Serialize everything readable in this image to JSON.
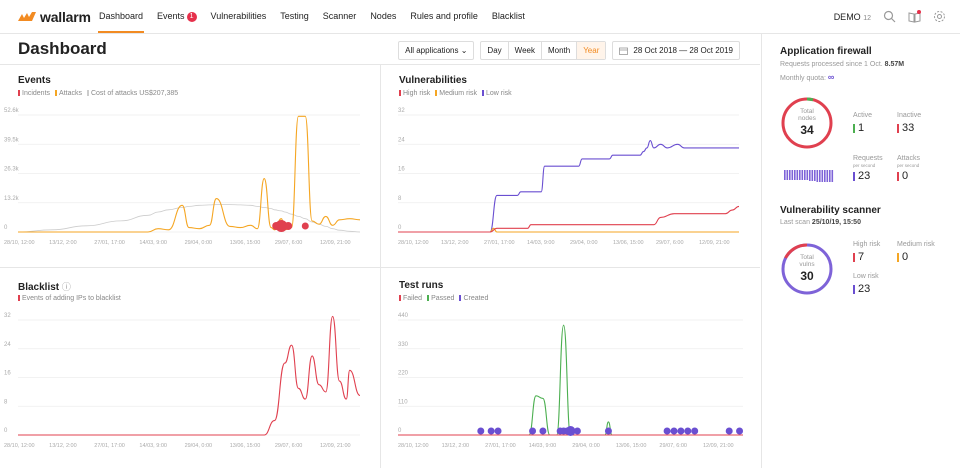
{
  "brand": {
    "name": "wallarm",
    "color": "#f28b22"
  },
  "nav": {
    "items": [
      {
        "label": "Dashboard",
        "active": true
      },
      {
        "label": "Events",
        "badge": "1"
      },
      {
        "label": "Vulnerabilities"
      },
      {
        "label": "Testing"
      },
      {
        "label": "Scanner"
      },
      {
        "label": "Nodes"
      },
      {
        "label": "Rules and profile"
      },
      {
        "label": "Blacklist"
      }
    ],
    "account": "DEMO",
    "account_num": "12",
    "icons": [
      "search-icon",
      "book-icon",
      "gear-icon"
    ]
  },
  "page": {
    "title": "Dashboard",
    "app_select": "All applications",
    "periods": [
      "Day",
      "Week",
      "Month",
      "Year"
    ],
    "active_period": "Year",
    "date_range": "28 Oct 2018 — 28 Oct 2019"
  },
  "colors": {
    "red": "#e0404f",
    "orange": "#f5a623",
    "blue": "#6a4fd1",
    "green": "#4caf50",
    "grey": "#bbbbbb"
  },
  "x_ticks": [
    "28/10, 12:00",
    "13/12, 2:00",
    "27/01, 17:00",
    "14/03, 9:00",
    "29/04, 0:00",
    "13/06, 15:00",
    "29/07, 6:00",
    "12/09, 21:00"
  ],
  "panels": {
    "events": {
      "title": "Events",
      "legend": [
        {
          "label": "Incidents",
          "color": "#e0404f"
        },
        {
          "label": "Attacks",
          "color": "#f5a623"
        },
        {
          "label": "Cost of attacks US$207,385",
          "color": "#bbbbbb"
        }
      ]
    },
    "vulnerabilities": {
      "title": "Vulnerabilities",
      "legend": [
        {
          "label": "High risk",
          "color": "#e0404f"
        },
        {
          "label": "Medium risk",
          "color": "#f5a623"
        },
        {
          "label": "Low risk",
          "color": "#6a4fd1"
        }
      ]
    },
    "blacklist": {
      "title": "Blacklist",
      "legend": [
        {
          "label": "Events of adding IPs to blacklist",
          "color": "#e0404f"
        }
      ]
    },
    "testruns": {
      "title": "Test runs",
      "legend": [
        {
          "label": "Failed",
          "color": "#e0404f"
        },
        {
          "label": "Passed",
          "color": "#4caf50"
        },
        {
          "label": "Created",
          "color": "#6a4fd1"
        }
      ]
    }
  },
  "chart_data": [
    {
      "type": "line",
      "title": "Events",
      "ylim": [
        0,
        52600
      ],
      "yticks": [
        "0",
        "13.2k",
        "26.3k",
        "39.5k",
        "52.6k"
      ],
      "x": [
        0,
        0.1,
        0.2,
        0.3,
        0.38,
        0.41,
        0.44,
        0.48,
        0.5,
        0.53,
        0.56,
        0.58,
        0.62,
        0.65,
        0.68,
        0.7,
        0.72,
        0.74,
        0.75,
        0.77,
        0.78,
        0.8,
        0.82,
        0.84,
        0.86,
        0.88,
        0.9,
        0.92,
        0.94,
        0.97,
        1
      ],
      "series": [
        {
          "name": "Attacks",
          "values": [
            0,
            0,
            0,
            0,
            0,
            1500,
            1000,
            12000,
            2000,
            1500,
            3000,
            15000,
            2500,
            2000,
            3000,
            1500,
            24000,
            2000,
            1000,
            6000,
            1000,
            2000,
            52000,
            52000,
            5000,
            3500,
            7000,
            3000,
            5500,
            6000,
            5500
          ]
        },
        {
          "name": "Cost of attacks US$207,385",
          "style": "curve",
          "values": [
            0,
            1000,
            2800,
            5000,
            7500,
            9000,
            10000,
            11000,
            11500,
            12000,
            12200,
            12300,
            12300,
            12200,
            12000,
            11500,
            11000,
            10500,
            10000,
            9500,
            9000,
            8000,
            7000,
            6000,
            4500,
            3500,
            2500,
            1500,
            800,
            300,
            0
          ]
        }
      ],
      "incidents": [
        {
          "x": 0.755,
          "size": 4
        },
        {
          "x": 0.77,
          "size": 6
        },
        {
          "x": 0.79,
          "size": 4
        },
        {
          "x": 0.84,
          "size": 3.5
        }
      ]
    },
    {
      "type": "line",
      "title": "Vulnerabilities",
      "ylim": [
        0,
        32
      ],
      "yticks": [
        "0",
        "8",
        "16",
        "24",
        "32"
      ],
      "series": [
        {
          "name": "Low risk",
          "points": [
            [
              0,
              0
            ],
            [
              0.27,
              0
            ],
            [
              0.29,
              10
            ],
            [
              0.35,
              10
            ],
            [
              0.36,
              11
            ],
            [
              0.42,
              11
            ],
            [
              0.43,
              18
            ],
            [
              0.53,
              18
            ],
            [
              0.54,
              20
            ],
            [
              0.62,
              20
            ],
            [
              0.63,
              21
            ],
            [
              0.71,
              21
            ],
            [
              0.72,
              22
            ],
            [
              0.73,
              23
            ],
            [
              0.74,
              25
            ],
            [
              0.75,
              23
            ],
            [
              0.77,
              24
            ],
            [
              0.79,
              23
            ],
            [
              0.82,
              24
            ],
            [
              0.84,
              23
            ],
            [
              1,
              23
            ]
          ]
        },
        {
          "name": "Medium risk",
          "points": [
            [
              0,
              0
            ],
            [
              0.27,
              0
            ],
            [
              0.28,
              1
            ],
            [
              0.29,
              0
            ],
            [
              0.3,
              0
            ],
            [
              1,
              0
            ]
          ]
        },
        {
          "name": "High risk",
          "points": [
            [
              0,
              0
            ],
            [
              0.27,
              0
            ],
            [
              0.29,
              1
            ],
            [
              0.38,
              1
            ],
            [
              0.39,
              2
            ],
            [
              0.75,
              2
            ],
            [
              0.77,
              4
            ],
            [
              0.81,
              5
            ],
            [
              0.96,
              5
            ],
            [
              0.98,
              6
            ],
            [
              1,
              7
            ]
          ]
        }
      ]
    },
    {
      "type": "line",
      "title": "Blacklist",
      "ylim": [
        0,
        32
      ],
      "yticks": [
        "0",
        "8",
        "16",
        "24",
        "32"
      ],
      "series": [
        {
          "name": "Events of adding IPs to blacklist",
          "points": [
            [
              0,
              0
            ],
            [
              0.72,
              0
            ],
            [
              0.75,
              4
            ],
            [
              0.78,
              20
            ],
            [
              0.8,
              25
            ],
            [
              0.82,
              13
            ],
            [
              0.84,
              10
            ],
            [
              0.86,
              22
            ],
            [
              0.88,
              14
            ],
            [
              0.9,
              12
            ],
            [
              0.92,
              33
            ],
            [
              0.94,
              15
            ],
            [
              0.96,
              10
            ],
            [
              0.97,
              18
            ],
            [
              1,
              11
            ]
          ]
        }
      ]
    },
    {
      "type": "line",
      "title": "Test runs",
      "ylim": [
        0,
        440
      ],
      "yticks": [
        "0",
        "110",
        "220",
        "330",
        "440"
      ],
      "series": [
        {
          "name": "Passed",
          "points": [
            [
              0,
              0
            ],
            [
              0.38,
              0
            ],
            [
              0.4,
              150
            ],
            [
              0.42,
              140
            ],
            [
              0.44,
              0
            ],
            [
              0.46,
              0
            ],
            [
              0.48,
              420
            ],
            [
              0.5,
              0
            ],
            [
              0.53,
              0
            ],
            [
              0.6,
              0
            ],
            [
              0.61,
              50
            ],
            [
              0.62,
              0
            ],
            [
              1,
              0
            ]
          ]
        },
        {
          "name": "Failed",
          "points": [
            [
              0,
              0
            ],
            [
              1,
              0
            ]
          ]
        }
      ],
      "created": [
        0.24,
        0.27,
        0.29,
        0.39,
        0.42,
        0.47,
        0.48,
        0.49,
        0.5,
        0.52,
        0.61,
        0.78,
        0.8,
        0.82,
        0.84,
        0.86,
        0.96,
        0.99
      ]
    }
  ],
  "sidebar": {
    "firewall": {
      "title": "Application firewall",
      "requests_label": "Requests processed since 1 Oct.",
      "requests_value": "8.57M",
      "quota_label": "Monthly quota:",
      "quota_value": "∞",
      "ring_label_1": "Total",
      "ring_label_2": "nodes",
      "total_nodes": "34",
      "active": {
        "label": "Active",
        "value": "1",
        "color": "#4caf50"
      },
      "inactive": {
        "label": "Inactive",
        "value": "33",
        "color": "#e0404f"
      },
      "requests": {
        "label": "Requests",
        "sub": "per second",
        "value": "23",
        "color": "#6a4fd1"
      },
      "attacks": {
        "label": "Attacks",
        "sub": "per second",
        "value": "0",
        "color": "#e0404f"
      }
    },
    "scanner": {
      "title": "Vulnerability scanner",
      "last_scan_label": "Last scan",
      "last_scan": "25/10/19, 15:50",
      "ring_label_1": "Total",
      "ring_label_2": "vulns",
      "total": "30",
      "high": {
        "label": "High risk",
        "value": "7",
        "color": "#e0404f"
      },
      "medium": {
        "label": "Medium risk",
        "value": "0",
        "color": "#f5a623"
      },
      "low": {
        "label": "Low risk",
        "value": "23",
        "color": "#6a4fd1"
      }
    }
  }
}
